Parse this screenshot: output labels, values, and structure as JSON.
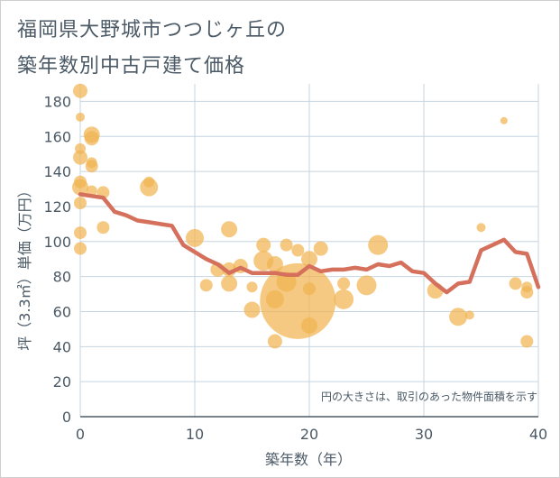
{
  "title_lines": [
    "福岡県大野城市つつじヶ丘の",
    "築年数別中古戸建て価格"
  ],
  "colors": {
    "bubble": "#f1b452",
    "line": "#d4705c",
    "grid": "#c6d4e0",
    "text": "#4b5a66"
  },
  "chart_data": {
    "type": "scatter",
    "title": "福岡県大野城市つつじヶ丘の築年数別中古戸建て価格",
    "xlabel": "築年数（年）",
    "ylabel": "坪（3.3㎡）単価（万円）",
    "xlim": [
      0,
      40
    ],
    "ylim": [
      0,
      190
    ],
    "xticks": [
      0,
      10,
      20,
      30,
      40
    ],
    "yticks": [
      0,
      20,
      40,
      60,
      80,
      100,
      120,
      140,
      160,
      180
    ],
    "grid": true,
    "note": "円の大きさは、取引のあった物件面積を示す",
    "bubbles": [
      {
        "x": 0,
        "y": 186,
        "r": 8
      },
      {
        "x": 0,
        "y": 171,
        "r": 5
      },
      {
        "x": 0,
        "y": 153,
        "r": 6
      },
      {
        "x": 0,
        "y": 148,
        "r": 8
      },
      {
        "x": 0,
        "y": 134,
        "r": 7
      },
      {
        "x": 0,
        "y": 131,
        "r": 9
      },
      {
        "x": 0,
        "y": 122,
        "r": 7
      },
      {
        "x": 0,
        "y": 105,
        "r": 7
      },
      {
        "x": 0,
        "y": 96,
        "r": 7
      },
      {
        "x": 1,
        "y": 161,
        "r": 9
      },
      {
        "x": 1,
        "y": 159,
        "r": 8
      },
      {
        "x": 1,
        "y": 145,
        "r": 6
      },
      {
        "x": 1,
        "y": 143,
        "r": 7
      },
      {
        "x": 1,
        "y": 129,
        "r": 6
      },
      {
        "x": 2,
        "y": 128,
        "r": 7
      },
      {
        "x": 2,
        "y": 108,
        "r": 7
      },
      {
        "x": 6,
        "y": 134,
        "r": 6
      },
      {
        "x": 6,
        "y": 131,
        "r": 10
      },
      {
        "x": 10,
        "y": 102,
        "r": 10
      },
      {
        "x": 11,
        "y": 75,
        "r": 7
      },
      {
        "x": 12,
        "y": 84,
        "r": 8
      },
      {
        "x": 13,
        "y": 107,
        "r": 9
      },
      {
        "x": 13,
        "y": 84,
        "r": 8
      },
      {
        "x": 13,
        "y": 76,
        "r": 9
      },
      {
        "x": 14,
        "y": 86,
        "r": 8
      },
      {
        "x": 15,
        "y": 74,
        "r": 6
      },
      {
        "x": 15,
        "y": 61,
        "r": 9
      },
      {
        "x": 16,
        "y": 98,
        "r": 8
      },
      {
        "x": 16,
        "y": 89,
        "r": 11
      },
      {
        "x": 17,
        "y": 87,
        "r": 9
      },
      {
        "x": 17,
        "y": 67,
        "r": 10
      },
      {
        "x": 17,
        "y": 43,
        "r": 8
      },
      {
        "x": 18,
        "y": 98,
        "r": 7
      },
      {
        "x": 18,
        "y": 77,
        "r": 11
      },
      {
        "x": 19,
        "y": 95,
        "r": 7
      },
      {
        "x": 19,
        "y": 66,
        "r": 42
      },
      {
        "x": 20,
        "y": 90,
        "r": 9
      },
      {
        "x": 20,
        "y": 73,
        "r": 7
      },
      {
        "x": 20,
        "y": 52,
        "r": 9
      },
      {
        "x": 21,
        "y": 96,
        "r": 8
      },
      {
        "x": 23,
        "y": 76,
        "r": 7
      },
      {
        "x": 23,
        "y": 67,
        "r": 11
      },
      {
        "x": 25,
        "y": 75,
        "r": 11
      },
      {
        "x": 26,
        "y": 98,
        "r": 11
      },
      {
        "x": 31,
        "y": 72,
        "r": 9
      },
      {
        "x": 33,
        "y": 57,
        "r": 10
      },
      {
        "x": 34,
        "y": 58,
        "r": 5
      },
      {
        "x": 35,
        "y": 108,
        "r": 5
      },
      {
        "x": 37,
        "y": 169,
        "r": 4
      },
      {
        "x": 38,
        "y": 76,
        "r": 7
      },
      {
        "x": 39,
        "y": 74,
        "r": 6
      },
      {
        "x": 39,
        "y": 71,
        "r": 7
      },
      {
        "x": 39,
        "y": 43,
        "r": 7
      }
    ],
    "line": {
      "x": [
        0,
        1,
        2,
        3,
        4,
        5,
        6,
        7,
        8,
        9,
        10,
        11,
        12,
        13,
        14,
        15,
        16,
        17,
        18,
        19,
        20,
        21,
        22,
        23,
        24,
        25,
        26,
        27,
        28,
        29,
        30,
        31,
        32,
        33,
        34,
        35,
        36,
        37,
        38,
        39,
        40
      ],
      "y": [
        127,
        126,
        125,
        117,
        115,
        112,
        111,
        110,
        109,
        98,
        94,
        90,
        87,
        82,
        85,
        82,
        82,
        82,
        81,
        81,
        86,
        83,
        84,
        84,
        85,
        84,
        87,
        86,
        88,
        83,
        82,
        76,
        71,
        76,
        77,
        95,
        98,
        101,
        94,
        93,
        74
      ]
    }
  }
}
